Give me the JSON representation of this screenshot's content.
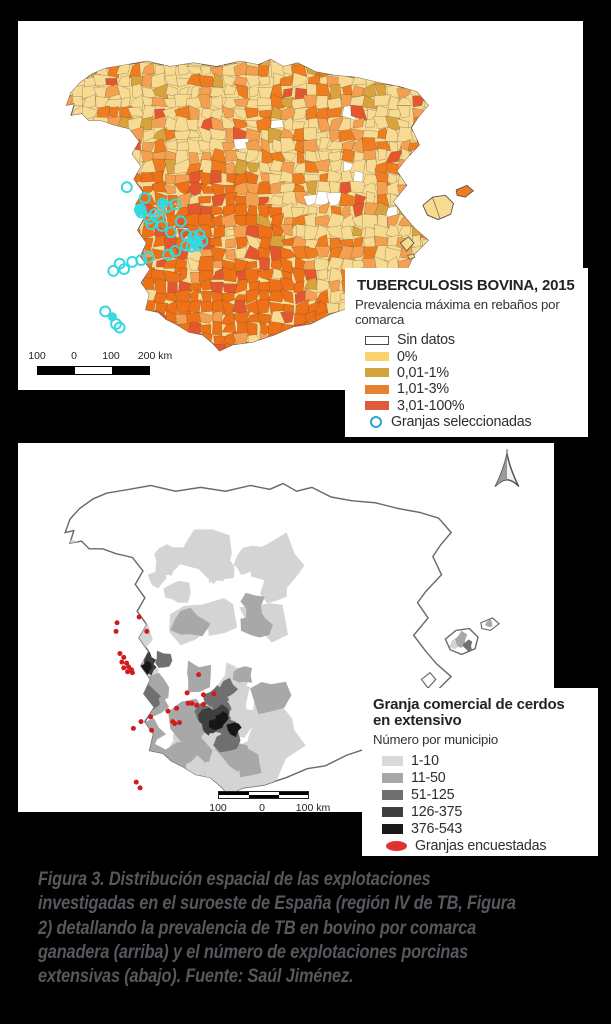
{
  "page": {
    "background": "#000000"
  },
  "top_map": {
    "legend": {
      "title": "TUBERCULOSIS BOVINA, 2015",
      "subtitle": "Prevalencia máxima en rebaños por comarca",
      "items": [
        {
          "label": "Sin datos",
          "color": "#FFFFFF",
          "type": "outlined"
        },
        {
          "label": "0%",
          "color": "#FAD36F",
          "type": "fill"
        },
        {
          "label": "0,01-1%",
          "color": "#D2A33D",
          "type": "fill"
        },
        {
          "label": "1,01-3%",
          "color": "#E8812F",
          "type": "fill"
        },
        {
          "label": "3,01-100%",
          "color": "#E05B3B",
          "type": "fill"
        },
        {
          "label": "Granjas seleccionadas",
          "color": "#2FA3C8",
          "type": "circle"
        }
      ]
    },
    "scale_bar": {
      "labels": [
        "100",
        "0",
        "100",
        "200 km"
      ]
    }
  },
  "bottom_map": {
    "legend": {
      "title": "Granja comercial de cerdos en extensivo",
      "subtitle": "Número por municipio",
      "items": [
        {
          "label": "1-10",
          "color": "#D9D9D9",
          "type": "fill"
        },
        {
          "label": "11-50",
          "color": "#A8A8A8",
          "type": "fill"
        },
        {
          "label": "51-125",
          "color": "#6F6F6F",
          "type": "fill"
        },
        {
          "label": "126-375",
          "color": "#3F3F3F",
          "type": "fill"
        },
        {
          "label": "376-543",
          "color": "#191919",
          "type": "fill"
        },
        {
          "label": "Granjas encuestadas",
          "color": "#E03131",
          "type": "dot"
        }
      ]
    },
    "scale_bar": {
      "labels": [
        "100",
        "0",
        "100 km"
      ]
    }
  },
  "caption": {
    "label": "Figura 3.",
    "line1_rest": " Distribución espacial de las explotaciones",
    "lines": [
      "investigadas en el suroeste de España (región IV de TB, Figura",
      "2) detallando la prevalencia de TB en bovino por comarca",
      "ganadera (arriba) y el número de explotaciones porcinas",
      "extensivas (abajo). Fuente: Saúl Jiménez."
    ]
  },
  "map_colors": {
    "tb_pale": "#F8DB92",
    "tb_light_orange": "#F5A050",
    "tb_orange": "#EF7D1F",
    "tb_ochre": "#D8A33C",
    "tb_red": "#E4572E",
    "tb_sw": "#EE7118",
    "tb_nodata": "#FFFFFF",
    "cyan_marker": "#35D8DE",
    "outline_gray": "#6A6A6A",
    "pig_grays": [
      "#D4D4D4",
      "#A8A8A8",
      "#6F6F6F",
      "#3F3F3F",
      "#161616"
    ],
    "red_dot": "#D21C1C"
  }
}
